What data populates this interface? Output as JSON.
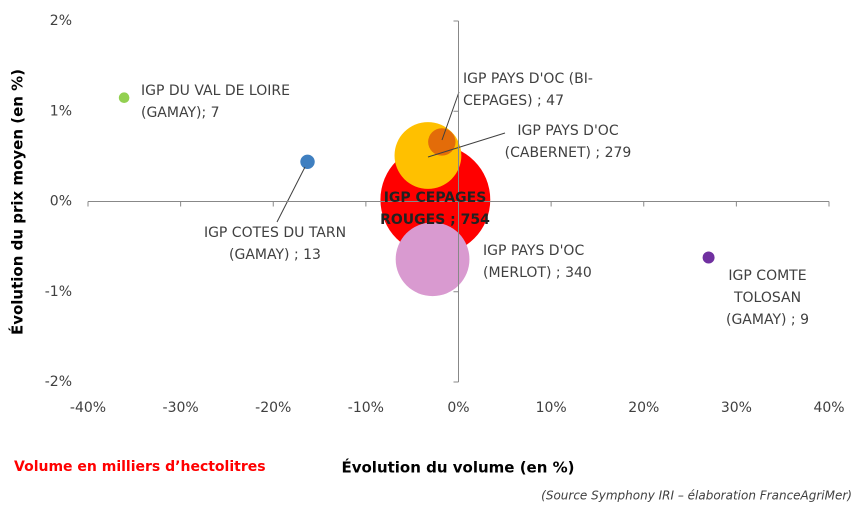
{
  "chart_data": {
    "type": "bubble",
    "xlabel": "Évolution du volume (en %)",
    "ylabel": "Évolution du prix moyen (en %)",
    "size_note": "Volume en milliers d’hectolitres",
    "source": "(Source Symphony IRI – élaboration FranceAgriMer)",
    "labels": [
      "IGP CEPAGES ROUGES ; 754",
      "IGP PAYS D'OC (CABERNET) ; 279",
      "IGP PAYS D'OC (BI-CEPAGES) ; 47",
      "IGP PAYS D'OC (MERLOT) ; 340",
      "IGP DU VAL DE LOIRE (GAMAY); 7",
      "IGP COTES DU TARN (GAMAY) ; 13",
      "IGP COMTE TOLOSAN (GAMAY) ; 9"
    ],
    "x": [
      -2.5,
      -3.3,
      -1.8,
      -2.8,
      -36.1,
      -16.3,
      27
    ],
    "values": [
      0.02,
      0.51,
      0.66,
      -0.64,
      1.15,
      0.44,
      -0.62
    ],
    "sizes": [
      754,
      279,
      47,
      340,
      7,
      13,
      9
    ],
    "colors": [
      "#ff0000",
      "#ffc000",
      "#e36c09",
      "#d99ad0",
      "#92d050",
      "#3f7fc0",
      "#7030a0"
    ],
    "xlim": [
      -40,
      40
    ],
    "xticks": [
      {
        "value": -40,
        "label": "-40%"
      },
      {
        "value": -30,
        "label": "-30%"
      },
      {
        "value": -20,
        "label": "-20%"
      },
      {
        "value": -10,
        "label": "-10%"
      },
      {
        "value": 0,
        "label": "0%"
      },
      {
        "value": 10,
        "label": "10%"
      },
      {
        "value": 20,
        "label": "20%"
      },
      {
        "value": 30,
        "label": "30%"
      },
      {
        "value": 40,
        "label": "40%"
      }
    ],
    "ylim": [
      -2,
      2
    ],
    "yticks": [
      {
        "value": -2,
        "label": "-2%"
      },
      {
        "value": -1,
        "label": "-1%"
      },
      {
        "value": 0,
        "label": "0%"
      },
      {
        "value": 1,
        "label": "1%"
      },
      {
        "value": 2,
        "label": "2%"
      }
    ]
  }
}
